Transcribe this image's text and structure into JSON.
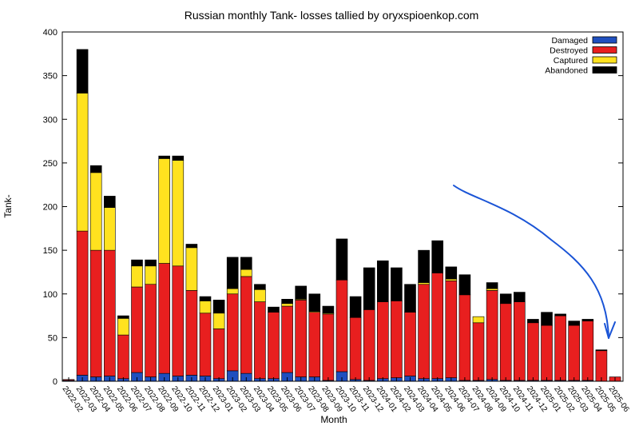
{
  "chart_data": {
    "type": "bar",
    "stacked": true,
    "title": "Russian monthly Tank- losses tallied by oryxspioenkop.com",
    "xlabel": "Month",
    "ylabel": "Tank-",
    "ylim": [
      0,
      400
    ],
    "yticks": [
      0,
      50,
      100,
      150,
      200,
      250,
      300,
      350,
      400
    ],
    "legend_position": "top-right",
    "grid": false,
    "categories": [
      "2022-02",
      "2022-03",
      "2022-04",
      "2022-05",
      "2022-06",
      "2022-07",
      "2022-08",
      "2022-09",
      "2022-10",
      "2022-11",
      "2022-12",
      "2023-01",
      "2023-02",
      "2023-03",
      "2023-04",
      "2023-05",
      "2023-06",
      "2023-07",
      "2023-08",
      "2023-09",
      "2023-10",
      "2023-11",
      "2023-12",
      "2024-01",
      "2024-02",
      "2024-03",
      "2024-04",
      "2024-05",
      "2024-06",
      "2024-07",
      "2024-08",
      "2024-09",
      "2024-10",
      "2024-11",
      "2024-12",
      "2025-01",
      "2025-02",
      "2025-03",
      "2025-04",
      "2025-05",
      "2025-06"
    ],
    "series": [
      {
        "name": "Damaged",
        "color": "#1f4fbf",
        "values": [
          1,
          7,
          5,
          6,
          3,
          10,
          5,
          9,
          6,
          7,
          6,
          3,
          12,
          9,
          3,
          3,
          10,
          5,
          5,
          1,
          11,
          2,
          1,
          3,
          4,
          6,
          3,
          3,
          4,
          1,
          1,
          2,
          1,
          1,
          1,
          1,
          1,
          1,
          1,
          0,
          0
        ]
      },
      {
        "name": "Destroyed",
        "color": "#e81f1f",
        "values": [
          1,
          165,
          145,
          144,
          50,
          98,
          106,
          126,
          126,
          97,
          72,
          57,
          88,
          111,
          88,
          76,
          76,
          88,
          74,
          76,
          105,
          71,
          81,
          88,
          88,
          73,
          108,
          121,
          111,
          98,
          66,
          102,
          88,
          90,
          66,
          63,
          74,
          63,
          68,
          35,
          5
        ]
      },
      {
        "name": "Captured",
        "color": "#ffe21f",
        "values": [
          0,
          158,
          89,
          49,
          19,
          24,
          21,
          120,
          121,
          49,
          14,
          18,
          6,
          8,
          14,
          0,
          3,
          1,
          1,
          1,
          0,
          0,
          0,
          0,
          0,
          0,
          2,
          0,
          2,
          0,
          7,
          2,
          0,
          0,
          0,
          0,
          0,
          0,
          0,
          0,
          0
        ]
      },
      {
        "name": "Abandoned",
        "color": "#000000",
        "values": [
          0,
          50,
          8,
          13,
          3,
          7,
          7,
          3,
          5,
          4,
          5,
          15,
          36,
          14,
          6,
          6,
          5,
          15,
          20,
          8,
          47,
          24,
          48,
          47,
          38,
          32,
          37,
          37,
          14,
          23,
          0,
          7,
          11,
          11,
          4,
          15,
          2,
          5,
          2,
          1,
          0
        ]
      }
    ]
  },
  "annotation": {
    "type": "hand-drawn-arrow",
    "color": "#1a54d6"
  }
}
